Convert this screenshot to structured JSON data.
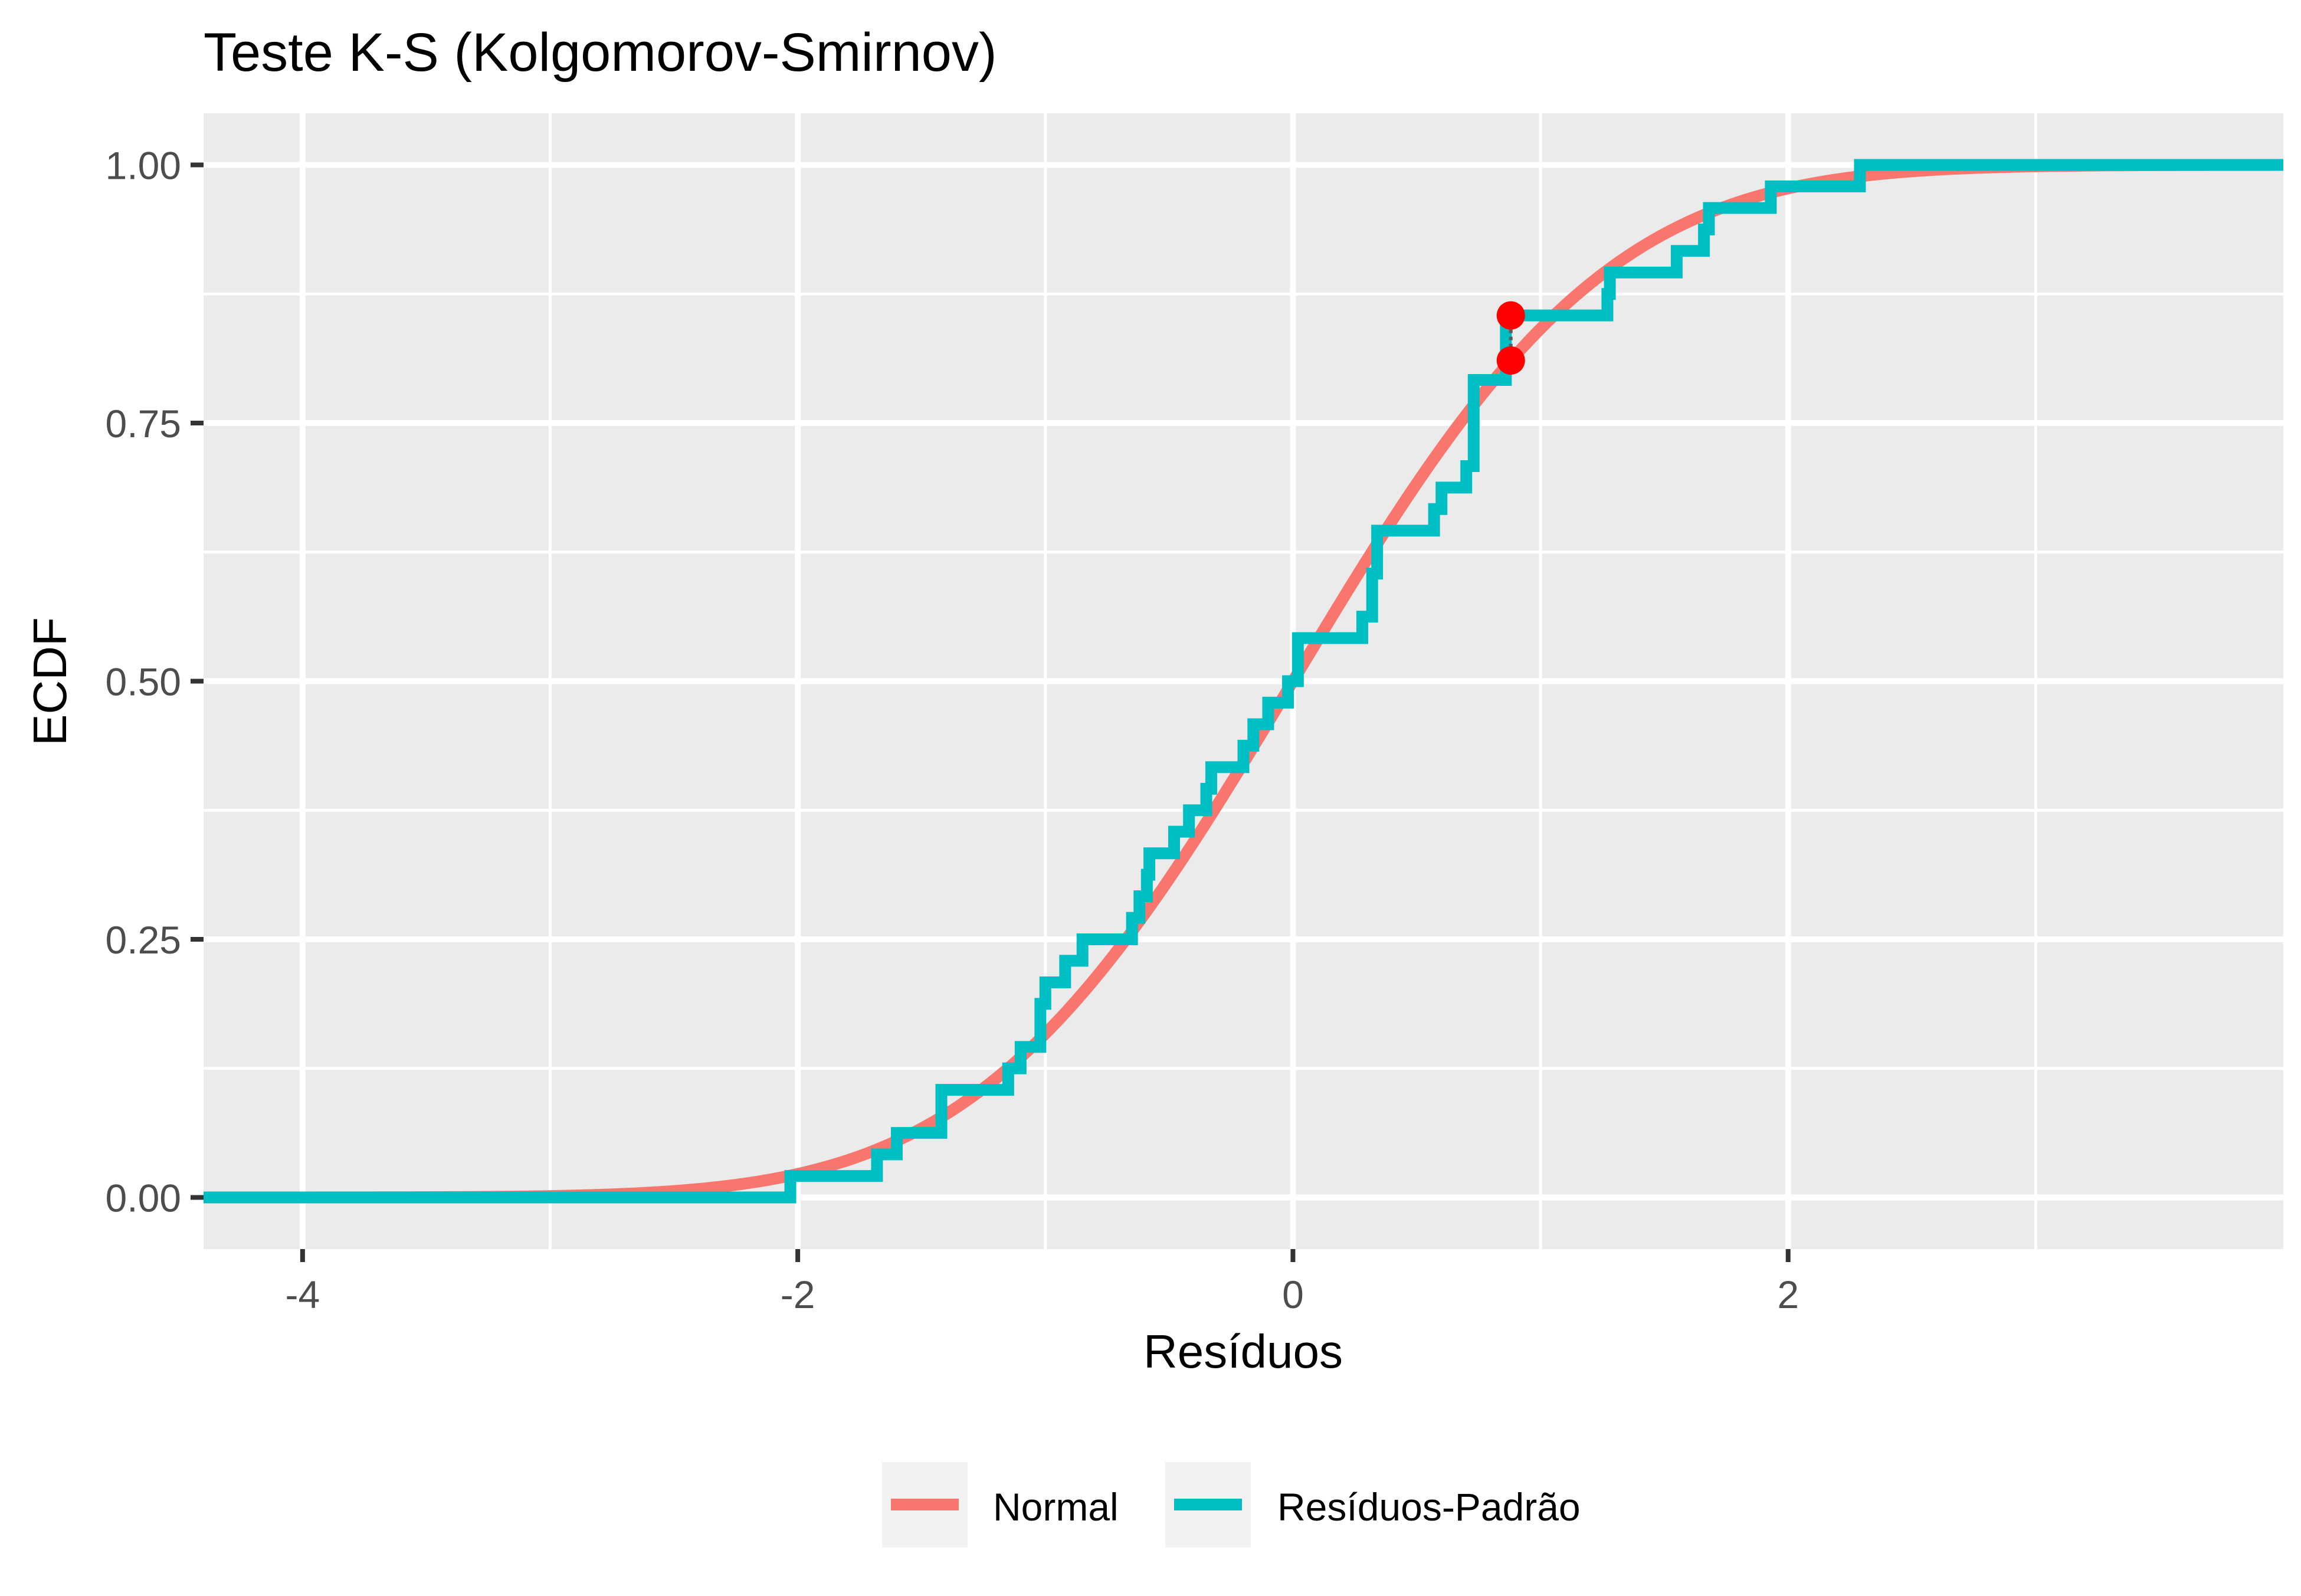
{
  "chart_data": {
    "type": "line",
    "title": "Teste K-S (Kolgomorov-Smirnov)",
    "xlabel": "Resíduos",
    "ylabel": "ECDF",
    "xlim": [
      -4.4,
      4.0
    ],
    "ylim": [
      -0.05,
      1.05
    ],
    "x_ticks": [
      -4,
      -2,
      0,
      2
    ],
    "x_tick_labels": [
      "-4",
      "-2",
      "0",
      "2"
    ],
    "y_ticks": [
      0.0,
      0.25,
      0.5,
      0.75,
      1.0
    ],
    "y_tick_labels": [
      "0.00",
      "0.25",
      "0.50",
      "0.75",
      "1.00"
    ],
    "grid": true,
    "legend_position": "bottom",
    "colors": {
      "panel": "#EBEBEB",
      "grid": "#FFFFFF",
      "normal": "#F8766D",
      "residuals": "#00BFC4",
      "ks_point": "#FF0000",
      "ks_segment": "#5A5A5A"
    },
    "series": [
      {
        "name": "Normal",
        "kind": "normal_cdf",
        "mean": 0,
        "sd": 1
      },
      {
        "name": "Resíduos-Padrão",
        "kind": "ecdf",
        "jumps": [
          -2.03,
          -1.68,
          -1.6,
          -1.42,
          -1.15,
          -1.1,
          -1.02,
          -1.0,
          -0.92,
          -0.85,
          -0.65,
          -0.62,
          -0.59,
          -0.58,
          -0.48,
          -0.42,
          -0.35,
          -0.33,
          -0.2,
          -0.16,
          -0.1,
          -0.02,
          0.02,
          0.28,
          0.32,
          0.34,
          0.57,
          0.6,
          0.7,
          0.73,
          0.86,
          1.27,
          1.28,
          1.55,
          1.66,
          1.68,
          1.93,
          2.29
        ],
        "levels": [
          0.0208,
          0.0417,
          0.0625,
          0.1042,
          0.125,
          0.1458,
          0.1875,
          0.2083,
          0.2292,
          0.25,
          0.2708,
          0.2917,
          0.3125,
          0.3333,
          0.3542,
          0.375,
          0.3958,
          0.4167,
          0.4375,
          0.4583,
          0.4792,
          0.5,
          0.5417,
          0.5625,
          0.6042,
          0.6458,
          0.6667,
          0.6875,
          0.7083,
          0.7917,
          0.8542,
          0.875,
          0.8958,
          0.9167,
          0.9375,
          0.9583,
          0.9792,
          1.0
        ]
      }
    ],
    "ks_statistic": {
      "x": 0.88,
      "y_ecdf": 0.8542,
      "y_normal": 0.8106
    }
  }
}
